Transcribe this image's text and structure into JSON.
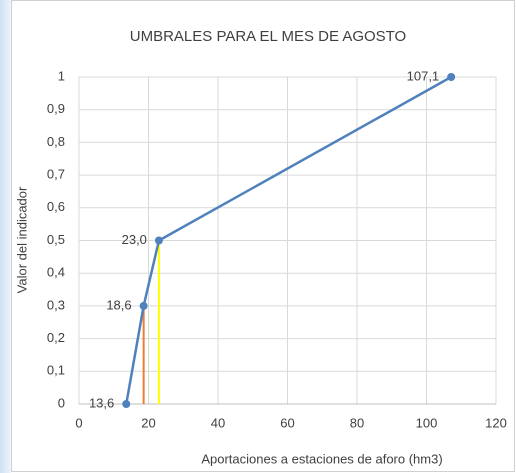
{
  "chart_data": {
    "type": "line",
    "title": "UMBRALES PARA EL MES DE AGOSTO",
    "x_label": "Aportaciones a estaciones de aforo (hm3)",
    "y_label": "Valor del indicador",
    "x": [
      13.6,
      18.6,
      23.0,
      107.1
    ],
    "values": [
      0,
      0.3,
      0.5,
      1
    ],
    "x_labels": [
      "13,6",
      "18,6",
      "23,0",
      "107,1"
    ],
    "color": "#4f81bd",
    "drop_lines": [
      {
        "point": 1,
        "color": "#ed7d31"
      },
      {
        "point": 2,
        "color": "#ffff00"
      }
    ],
    "xlim": [
      0,
      120
    ],
    "xticks": [
      0,
      20,
      40,
      60,
      80,
      100,
      120
    ],
    "ylim": [
      0,
      1
    ],
    "yticks": [
      0,
      {
        "value": 0.1,
        "label": "0,1"
      },
      {
        "value": 0.2,
        "label": "0,2"
      },
      {
        "value": 0.3,
        "label": "0,3"
      },
      {
        "value": 0.4,
        "label": "0,4"
      },
      {
        "value": 0.5,
        "label": "0,5"
      },
      {
        "value": 0.6,
        "label": "0,6"
      },
      {
        "value": 0.7,
        "label": "0,7"
      },
      {
        "value": 0.8,
        "label": "0,8"
      },
      {
        "value": 0.9,
        "label": "0,9"
      },
      1
    ],
    "grid": true
  }
}
